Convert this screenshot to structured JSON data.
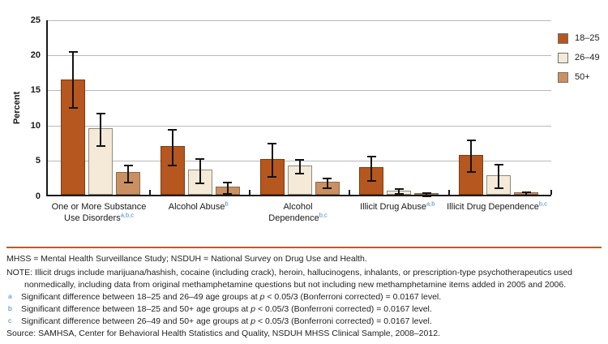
{
  "chart_data": {
    "type": "bar",
    "title": "",
    "ylabel": "Percent",
    "ylim": [
      0,
      25
    ],
    "ytick_step": 5,
    "grid": "horizontal",
    "legend_position": "right",
    "error_bars": true,
    "categories": [
      {
        "label": "One or More Substance Use Disorders",
        "lines": [
          "One or More Substance",
          "Use Disorders"
        ],
        "sup": "a,b,c"
      },
      {
        "label": "Alcohol Abuse",
        "lines": [
          "Alcohol Abuse"
        ],
        "sup": "b"
      },
      {
        "label": "Alcohol Dependence",
        "lines": [
          "Alcohol",
          "Dependence"
        ],
        "sup": "b,c"
      },
      {
        "label": "Illicit Drug Abuse",
        "lines": [
          "Illicit Drug Abuse"
        ],
        "sup": "a,b"
      },
      {
        "label": "Illicit Drug Dependence",
        "lines": [
          "Illicit Drug Dependence"
        ],
        "sup": "b,c"
      }
    ],
    "series": [
      {
        "name": "18–25",
        "color": "#b5571e",
        "border": "#7d3b11",
        "values": [
          16.4,
          6.9,
          5.1,
          3.9,
          5.6
        ],
        "ci_low": [
          12.6,
          4.4,
          2.8,
          2.2,
          3.4
        ],
        "ci_high": [
          20.5,
          9.5,
          7.5,
          5.6,
          7.9
        ]
      },
      {
        "name": "26–49",
        "color": "#f4ead7",
        "border": "#8f8a7d",
        "values": [
          9.4,
          3.6,
          4.2,
          0.6,
          2.8
        ],
        "ci_low": [
          7.1,
          1.8,
          3.2,
          0.3,
          1.1
        ],
        "ci_high": [
          11.8,
          5.3,
          5.2,
          1.0,
          4.5
        ]
      },
      {
        "name": "50+",
        "color": "#ca9061",
        "border": "#8d6a4a",
        "values": [
          3.2,
          1.2,
          1.8,
          0.2,
          0.3
        ],
        "ci_low": [
          2.0,
          0.4,
          1.1,
          0.05,
          0.1
        ],
        "ci_high": [
          4.4,
          2.0,
          2.5,
          0.45,
          0.55
        ]
      }
    ]
  },
  "colors": {
    "accent_rule": "#c05a22",
    "footnote_marker": "#3f87c5",
    "bar_18_25": "#b5571e",
    "bar_26_49": "#f4ead7",
    "bar_50_plus": "#ca9061",
    "grid": "#b9b9b9",
    "axis": "#1a1a1a"
  },
  "footer": {
    "abbrev": "MHSS = Mental Health Surveillance Study; NSDUH = National Survey on Drug Use and Health.",
    "note": "NOTE: Illicit drugs include marijuana/hashish, cocaine (including crack), heroin, hallucinogens, inhalants, or prescription-type psychotherapeutics used nonmedically, including data from original methamphetamine questions but not including new methamphetamine items added in 2005 and 2006.",
    "footnotes": [
      {
        "marker": "a",
        "before": "Significant difference between 18–25 and 26–49 age groups at ",
        "italic": "p",
        "after": " < 0.05/3 (Bonferroni corrected) = 0.0167 level."
      },
      {
        "marker": "b",
        "before": "Significant difference between 18–25 and 50+ age groups at ",
        "italic": "p",
        "after": " < 0.05/3 (Bonferroni corrected) = 0.0167 level."
      },
      {
        "marker": "c",
        "before": "Significant difference between 26–49 and 50+ age groups at ",
        "italic": "p",
        "after": " < 0.05/3 (Bonferroni corrected) = 0.0167 level."
      }
    ],
    "source": "Source: SAMHSA, Center for Behavioral Health Statistics and Quality, NSDUH MHSS Clinical Sample, 2008–2012."
  }
}
